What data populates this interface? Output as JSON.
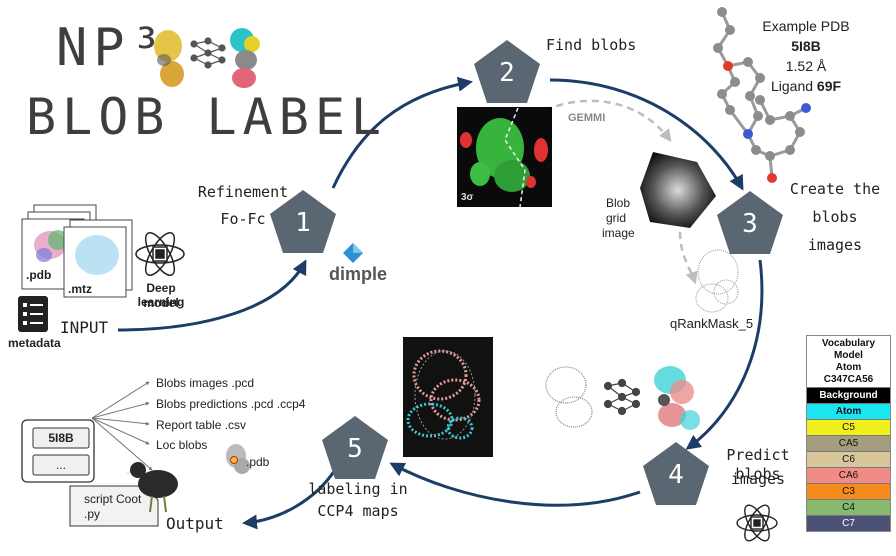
{
  "title": {
    "line1": "NP³",
    "line2": "BLOB LABEL"
  },
  "steps": [
    {
      "number": "1",
      "label_line1": "Refinement",
      "label_line2": "Fo-Fc"
    },
    {
      "number": "2",
      "label": "Find blobs"
    },
    {
      "number": "3",
      "label_line1": "Create the",
      "label_line2": "blobs",
      "label_line3": "images"
    },
    {
      "number": "4",
      "label_line1": "Predict blobs",
      "label_line2": "images"
    },
    {
      "number": "5",
      "label_line1": "labeling in",
      "label_line2": "CCP4 maps"
    }
  ],
  "example": {
    "line1": "Example PDB",
    "pdb": "5I8B",
    "resolution": "1.52 Å",
    "ligand_prefix": "Ligand",
    "ligand": "69F"
  },
  "annotations": {
    "gemmi": "GEMMI",
    "blob_grid_line1": "Blob",
    "blob_grid_line2": "grid",
    "blob_grid_line3": "image",
    "qrank": "qRankMask_5",
    "sigma": "3σ",
    "dimple": "dimple"
  },
  "input": {
    "label": "INPUT",
    "pdb": ".pdb",
    "mtz": ".mtz",
    "metadata": "metadata",
    "dl_line1": "Deep learning",
    "dl_line2": "model"
  },
  "output": {
    "label": "Output",
    "items": [
      "Blobs images  .pcd",
      "Blobs predictions  .pcd .ccp4",
      "Report table  .csv",
      "Loc blobs"
    ],
    "loc_ext": ".pdb",
    "card_title": "5I8B",
    "card_more": "...",
    "script_line1": "script Coot",
    "script_line2": ".py"
  },
  "legend": {
    "header_line1": "Vocabulary",
    "header_line2": "Model",
    "header_line3": "Atom",
    "header_line4": "C347CA56",
    "rows": [
      {
        "label": "Background",
        "color": "#000000",
        "text": "#ffffff"
      },
      {
        "label": "Atom",
        "color": "#19e6f0",
        "text": "#111111"
      },
      {
        "label": "C5",
        "color": "#f2f01c",
        "text": "#111111"
      },
      {
        "label": "CA5",
        "color": "#a49d7f",
        "text": "#111111"
      },
      {
        "label": "C6",
        "color": "#d8c79a",
        "text": "#111111"
      },
      {
        "label": "CA6",
        "color": "#f08b86",
        "text": "#111111"
      },
      {
        "label": "C3",
        "color": "#f58a1d",
        "text": "#111111"
      },
      {
        "label": "C4",
        "color": "#86b96e",
        "text": "#111111"
      },
      {
        "label": "C7",
        "color": "#4b5276",
        "text": "#ffffff"
      }
    ]
  },
  "colors": {
    "pentagon": "#5a6773",
    "arrow": "#1c3d66",
    "dashed": "#bdbdbd"
  }
}
